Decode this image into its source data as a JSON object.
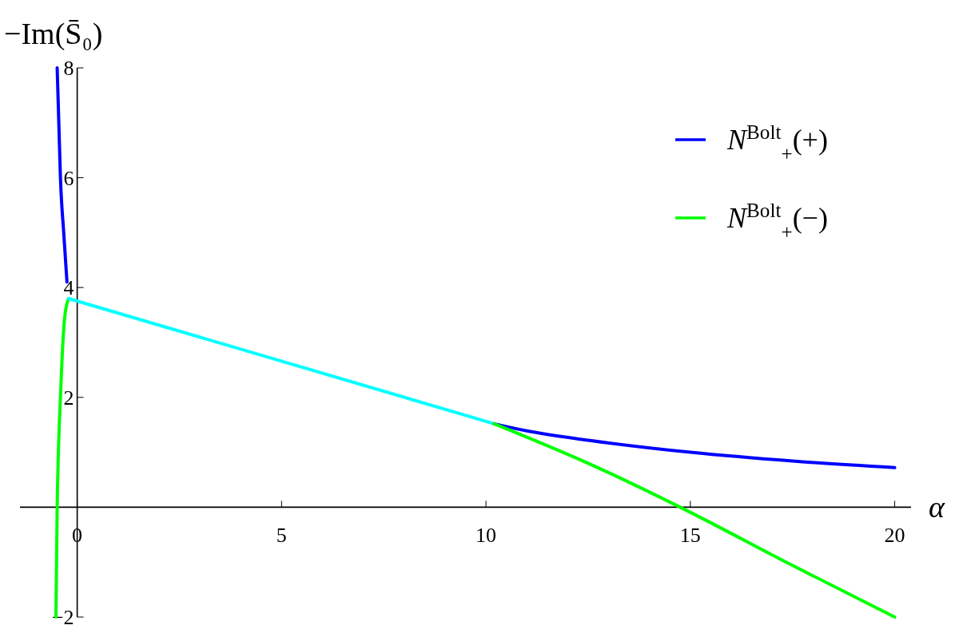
{
  "chart_data": {
    "type": "line",
    "xlabel": "α",
    "ylabel": "−Im(S̄₀)",
    "xlim": [
      -1.4,
      20.4
    ],
    "ylim": [
      -2,
      8
    ],
    "xticks": [
      0,
      5,
      10,
      15,
      20
    ],
    "yticks": [
      -2,
      2,
      4,
      6,
      8
    ],
    "legend": "top right",
    "line_style": "solid",
    "marker": "none",
    "series": [
      {
        "name": "N$^{Bolt}$$_{+}$(+)",
        "color": "#0000ff",
        "x": [
          -0.49,
          -0.45,
          -0.41,
          -0.33,
          -0.25
        ],
        "values": [
          8,
          7,
          6,
          5,
          4.1
        ]
      },
      {
        "name": "N$^{Bolt}$$_{+}$(−)",
        "color": "#00ff00",
        "x": [
          -0.52,
          -0.49,
          -0.46,
          -0.41,
          -0.35,
          -0.3,
          -0.21
        ],
        "values": [
          -2,
          0,
          1,
          2,
          3,
          3.5,
          3.8
        ]
      },
      {
        "color": "#00ffff",
        "x": [
          -0.21,
          10.2
        ],
        "values": [
          3.8,
          1.52
        ]
      },
      {
        "color": "#0000ff",
        "x": [
          10.2,
          11,
          12.5,
          15,
          17.5,
          20
        ],
        "values": [
          1.52,
          1.39,
          1.22,
          1.0,
          0.84,
          0.72
        ]
      },
      {
        "color": "#00ff00",
        "x": [
          10.2,
          12.5,
          14.75,
          17.5,
          20
        ],
        "values": [
          1.52,
          0.8,
          0,
          -1.06,
          -2
        ]
      }
    ]
  }
}
